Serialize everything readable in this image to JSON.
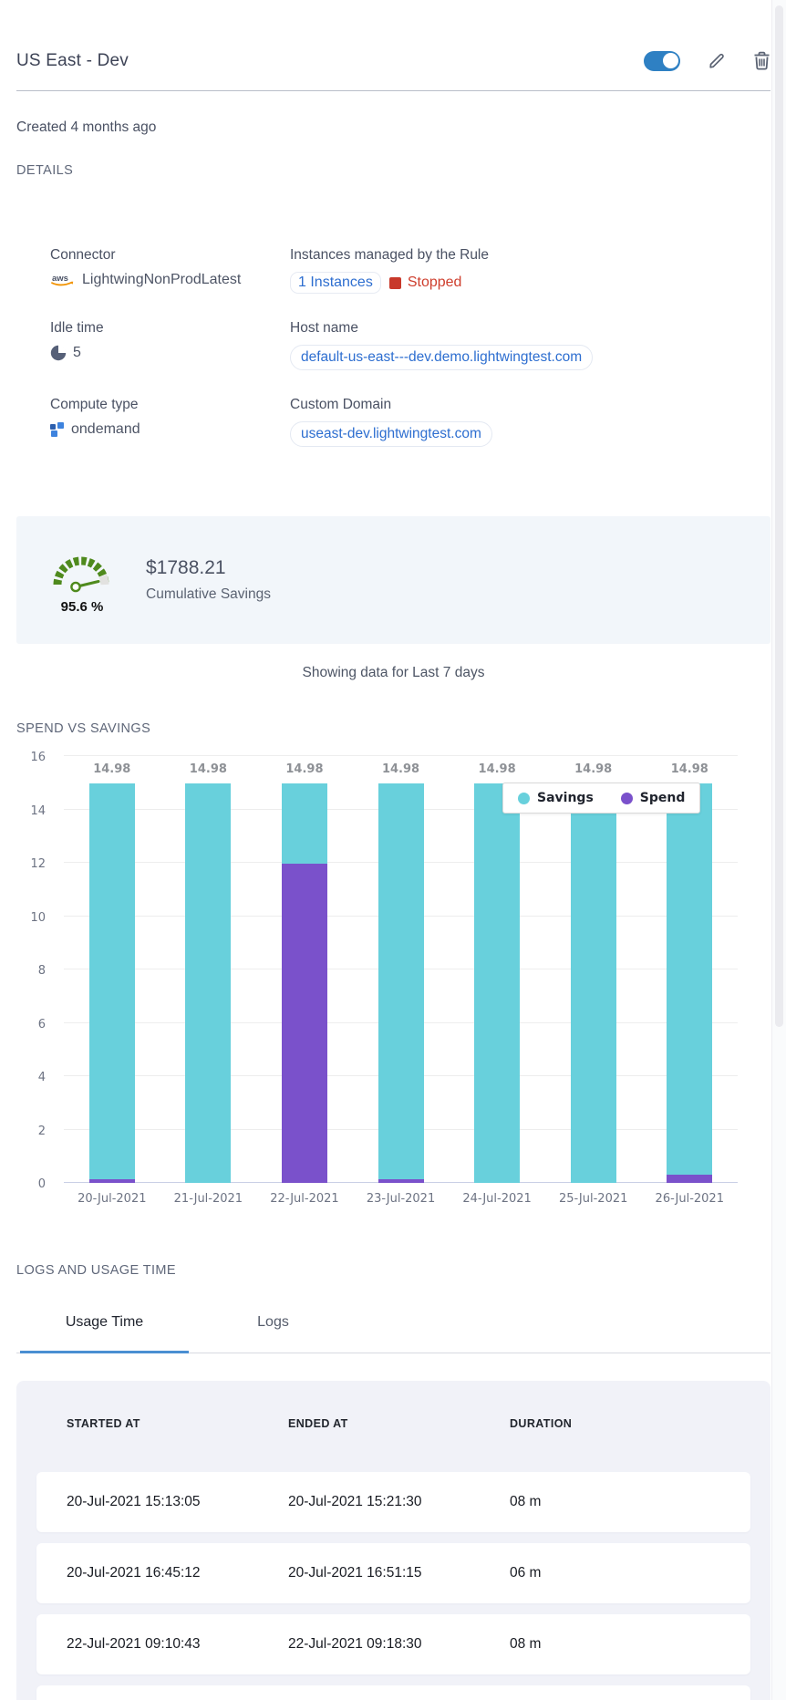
{
  "header": {
    "title": "US East - Dev",
    "toggle_state": "on"
  },
  "created_text": "Created 4 months ago",
  "section_headings": {
    "details": "DETAILS",
    "spend": "SPEND VS SAVINGS",
    "logs": "LOGS AND USAGE TIME"
  },
  "details": {
    "connector_label": "Connector",
    "connector_value": "LightwingNonProdLatest",
    "instances_label": "Instances managed by the Rule",
    "instances_link": "1 Instances",
    "instances_status": "Stopped",
    "idle_label": "Idle time",
    "idle_value": "5",
    "host_label": "Host name",
    "host_value": "default-us-east---dev.demo.lightwingtest.com",
    "compute_label": "Compute type",
    "compute_value": "ondemand",
    "domain_label": "Custom Domain",
    "domain_value": "useast-dev.lightwingtest.com"
  },
  "savings": {
    "percent": "95.6 %",
    "amount": "$1788.21",
    "caption": "Cumulative Savings"
  },
  "filter_note": "Showing data for Last 7 days",
  "chart_data": {
    "type": "bar",
    "stacked": true,
    "title": "SPEND VS SAVINGS",
    "categories": [
      "20-Jul-2021",
      "21-Jul-2021",
      "22-Jul-2021",
      "23-Jul-2021",
      "24-Jul-2021",
      "25-Jul-2021",
      "26-Jul-2021"
    ],
    "series": [
      {
        "name": "Savings",
        "color": "#68d0dc",
        "values": [
          14.83,
          14.98,
          3.03,
          14.83,
          14.98,
          14.98,
          14.68
        ]
      },
      {
        "name": "Spend",
        "color": "#7a51cb",
        "values": [
          0.15,
          0,
          11.95,
          0.15,
          0,
          0,
          0.3
        ]
      }
    ],
    "bar_labels": [
      "14.98",
      "14.98",
      "14.98",
      "14.98",
      "14.98",
      "14.98",
      "14.98"
    ],
    "ylim": [
      0,
      16
    ],
    "ytick_step": 2,
    "grid": true,
    "legend_position": "inside-top-right"
  },
  "tabs": [
    {
      "label": "Usage Time",
      "active": true
    },
    {
      "label": "Logs",
      "active": false
    }
  ],
  "usage_table": {
    "columns": [
      "STARTED AT",
      "ENDED AT",
      "DURATION"
    ],
    "rows": [
      [
        "20-Jul-2021 15:13:05",
        "20-Jul-2021 15:21:30",
        "08 m"
      ],
      [
        "20-Jul-2021 16:45:12",
        "20-Jul-2021 16:51:15",
        "06 m"
      ],
      [
        "22-Jul-2021 09:10:43",
        "22-Jul-2021 09:18:30",
        "08 m"
      ]
    ]
  },
  "colors": {
    "accent_blue": "#2e80c3",
    "link_blue": "#2d6ed0",
    "stopped_red": "#ce3e2d",
    "savings_teal": "#68d0dc",
    "spend_purple": "#7a51cb",
    "gauge_green": "#4f8a1d"
  }
}
